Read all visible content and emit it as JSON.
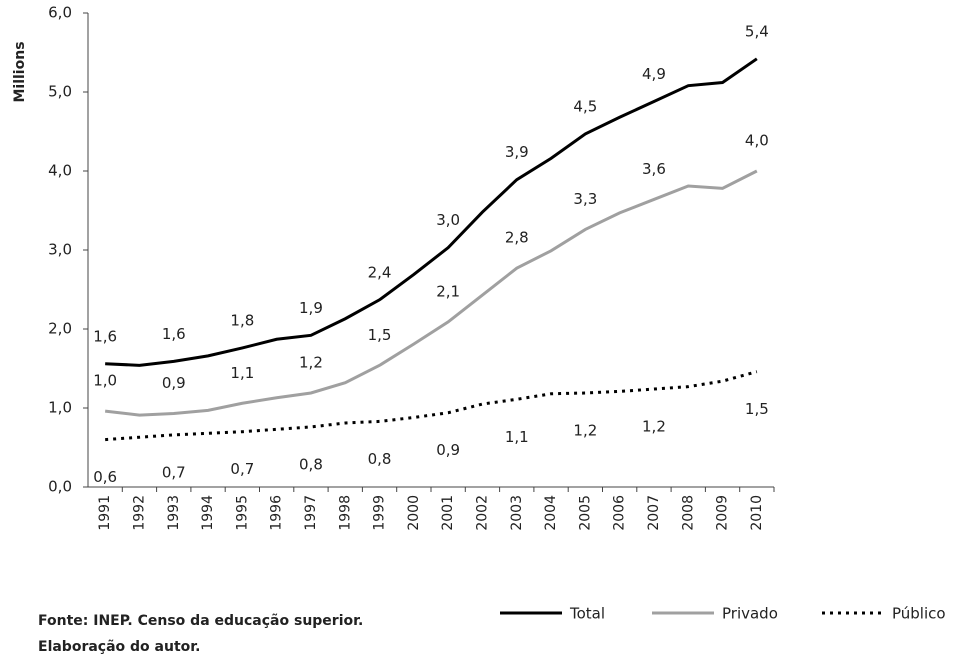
{
  "chart_data": {
    "type": "line",
    "y_label": "Millions",
    "categories": [
      "1991",
      "1992",
      "1993",
      "1994",
      "1995",
      "1996",
      "1997",
      "1998",
      "1999",
      "2000",
      "2001",
      "2002",
      "2003",
      "2004",
      "2005",
      "2006",
      "2007",
      "2008",
      "2009",
      "2010"
    ],
    "series": [
      {
        "name": "Total",
        "color": "#000000",
        "style": "solid",
        "values": [
          1.56,
          1.54,
          1.59,
          1.66,
          1.76,
          1.87,
          1.92,
          2.13,
          2.37,
          2.69,
          3.03,
          3.48,
          3.89,
          4.16,
          4.47,
          4.68,
          4.88,
          5.08,
          5.12,
          5.42
        ],
        "value_labels": [
          "1,6",
          null,
          "1,6",
          null,
          "1,8",
          null,
          "1,9",
          null,
          "2,4",
          null,
          "3,0",
          null,
          "3,9",
          null,
          "4,5",
          null,
          "4,9",
          null,
          null,
          "5,4"
        ]
      },
      {
        "name": "Privado",
        "color": "#a0a0a0",
        "style": "solid",
        "values": [
          0.96,
          0.91,
          0.93,
          0.97,
          1.06,
          1.13,
          1.19,
          1.32,
          1.54,
          1.81,
          2.09,
          2.43,
          2.77,
          2.99,
          3.26,
          3.47,
          3.64,
          3.81,
          3.78,
          4.0
        ],
        "value_labels": [
          "1,0",
          null,
          "0,9",
          null,
          "1,1",
          null,
          "1,2",
          null,
          "1,5",
          null,
          "2,1",
          null,
          "2,8",
          null,
          "3,3",
          null,
          "3,6",
          null,
          null,
          "4,0"
        ]
      },
      {
        "name": "Público",
        "color": "#000000",
        "style": "dotted",
        "values": [
          0.6,
          0.63,
          0.66,
          0.68,
          0.7,
          0.73,
          0.76,
          0.81,
          0.83,
          0.88,
          0.94,
          1.05,
          1.11,
          1.18,
          1.19,
          1.21,
          1.24,
          1.27,
          1.34,
          1.46
        ],
        "value_labels": [
          "0,6",
          null,
          "0,7",
          null,
          "0,7",
          null,
          "0,8",
          null,
          "0,8",
          null,
          "0,9",
          null,
          "1,1",
          null,
          "1,2",
          null,
          "1,2",
          null,
          null,
          "1,5"
        ]
      }
    ],
    "ylim": [
      0,
      6
    ],
    "yticks": [
      {
        "value": 0,
        "label": "0,0"
      },
      {
        "value": 1,
        "label": "1,0"
      },
      {
        "value": 2,
        "label": "2,0"
      },
      {
        "value": 3,
        "label": "3,0"
      },
      {
        "value": 4,
        "label": "4,0"
      },
      {
        "value": 5,
        "label": "5,0"
      },
      {
        "value": 6,
        "label": "6,0"
      }
    ],
    "grid": false,
    "legend": "bottom",
    "note": [
      "Fonte: INEP. Censo da educação superior.",
      "Elaboração do autor."
    ]
  }
}
